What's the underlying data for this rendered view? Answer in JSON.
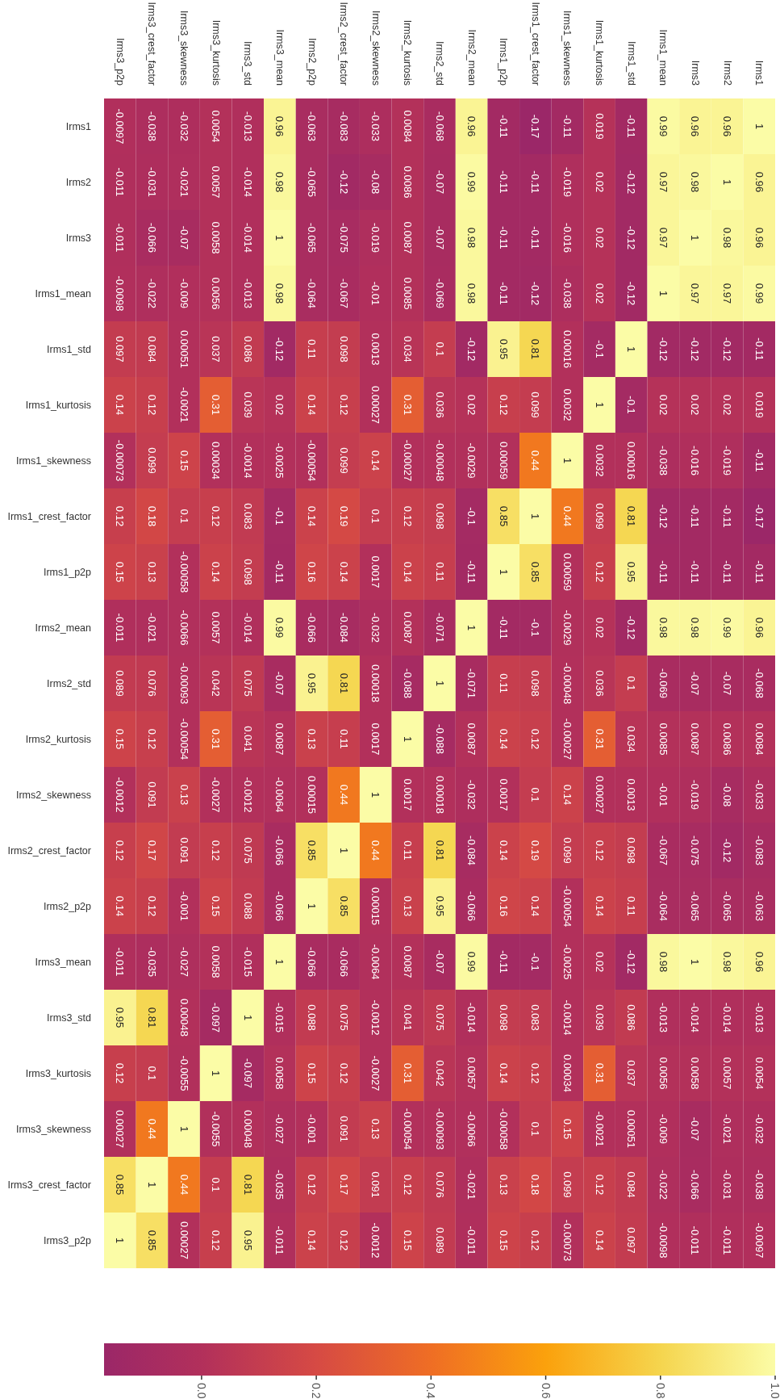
{
  "chart_data": {
    "type": "heatmap",
    "categories": [
      "Irms3_p2p",
      "Irms3_crest_factor",
      "Irms3_skewness",
      "Irms3_kurtosis",
      "Irms3_std",
      "Irms3_mean",
      "Irms2_p2p",
      "Irms2_crest_factor",
      "Irms2_skewness",
      "Irms2_kurtosis",
      "Irms2_std",
      "Irms2_mean",
      "Irms1_p2p",
      "Irms1_crest_factor",
      "Irms1_skewness",
      "Irms1_kurtosis",
      "Irms1_std",
      "Irms1_mean",
      "Irms3",
      "Irms2",
      "Irms1"
    ],
    "y_categories": [
      "Irms1",
      "Irms2",
      "Irms3",
      "Irms1_mean",
      "Irms1_std",
      "Irms1_kurtosis",
      "Irms1_skewness",
      "Irms1_crest_factor",
      "Irms1_p2p",
      "Irms2_mean",
      "Irms2_std",
      "Irms2_kurtosis",
      "Irms2_skewness",
      "Irms2_crest_factor",
      "Irms2_p2p",
      "Irms3_mean",
      "Irms3_std",
      "Irms3_kurtosis",
      "Irms3_skewness",
      "Irms3_crest_factor",
      "Irms3_p2p"
    ],
    "cells": [
      [
        -0.0097,
        -0.038,
        -0.032,
        0.0054,
        -0.013,
        0.96,
        -0.063,
        -0.083,
        -0.033,
        0.0084,
        -0.068,
        0.96,
        -0.11,
        -0.17,
        -0.11,
        0.019,
        -0.11,
        0.99,
        0.96,
        0.96,
        1
      ],
      [
        -0.011,
        -0.031,
        -0.021,
        0.0057,
        -0.014,
        0.98,
        -0.065,
        -0.12,
        -0.08,
        0.0086,
        -0.07,
        0.99,
        -0.11,
        -0.11,
        -0.019,
        0.02,
        -0.12,
        0.97,
        0.98,
        1,
        0.96
      ],
      [
        -0.011,
        -0.066,
        -0.07,
        0.0058,
        -0.014,
        1,
        -0.065,
        -0.075,
        -0.019,
        0.0087,
        -0.07,
        0.98,
        -0.11,
        -0.11,
        -0.016,
        0.02,
        -0.12,
        0.97,
        1,
        0.98,
        0.96
      ],
      [
        -0.0098,
        -0.022,
        -0.009,
        0.0056,
        -0.013,
        0.98,
        -0.064,
        -0.067,
        -0.01,
        0.0085,
        -0.069,
        0.98,
        -0.11,
        -0.12,
        -0.038,
        0.02,
        -0.12,
        1,
        0.97,
        0.97,
        0.99
      ],
      [
        0.097,
        0.084,
        0.00051,
        0.037,
        0.086,
        -0.12,
        0.11,
        0.098,
        0.0013,
        0.034,
        0.1,
        -0.12,
        0.95,
        0.81,
        0.00016,
        -0.1,
        1,
        -0.12,
        -0.12,
        -0.12,
        -0.11
      ],
      [
        0.14,
        0.12,
        -0.0021,
        0.31,
        0.039,
        0.02,
        0.14,
        0.12,
        0.00027,
        0.31,
        0.036,
        0.02,
        0.12,
        0.099,
        0.0032,
        1,
        -0.1,
        0.02,
        0.02,
        0.02,
        0.019
      ],
      [
        -0.00073,
        0.099,
        0.15,
        0.00034,
        -0.0014,
        -0.0025,
        -0.00054,
        0.099,
        0.14,
        -0.00027,
        -0.00048,
        -0.0029,
        0.00059,
        0.44,
        1,
        0.0032,
        0.00016,
        -0.038,
        -0.016,
        -0.019,
        -0.11
      ],
      [
        0.12,
        0.18,
        0.1,
        0.12,
        0.083,
        -0.1,
        0.14,
        0.19,
        0.1,
        0.12,
        0.098,
        -0.1,
        0.85,
        1,
        0.44,
        0.099,
        0.81,
        -0.12,
        -0.11,
        -0.11,
        -0.17
      ],
      [
        0.15,
        0.13,
        -0.00058,
        0.14,
        0.098,
        -0.11,
        0.16,
        0.14,
        0.0017,
        0.14,
        0.11,
        -0.11,
        1,
        0.85,
        0.00059,
        0.12,
        0.95,
        -0.11,
        -0.11,
        -0.11,
        -0.11
      ],
      [
        -0.011,
        -0.021,
        -0.0066,
        0.0057,
        -0.014,
        0.99,
        -0.066,
        -0.084,
        -0.032,
        0.0087,
        -0.071,
        1,
        -0.11,
        -0.1,
        -0.0029,
        0.02,
        -0.12,
        0.98,
        0.98,
        0.99,
        0.96
      ],
      [
        0.089,
        0.076,
        -0.00093,
        0.042,
        0.075,
        -0.07,
        0.95,
        0.81,
        0.00018,
        -0.088,
        1,
        -0.071,
        0.11,
        0.098,
        -0.00048,
        0.036,
        0.1,
        -0.069,
        -0.07,
        -0.07,
        -0.068
      ],
      [
        0.15,
        0.12,
        -0.00054,
        0.31,
        0.041,
        0.0087,
        0.13,
        0.11,
        0.0017,
        1,
        -0.088,
        0.0087,
        0.14,
        0.12,
        -0.00027,
        0.31,
        0.034,
        0.0085,
        0.0087,
        0.0086,
        0.0084
      ],
      [
        -0.0012,
        0.091,
        0.13,
        -0.0027,
        -0.0012,
        -0.0064,
        0.00015,
        0.44,
        1,
        0.0017,
        0.00018,
        -0.032,
        0.0017,
        0.1,
        0.14,
        0.00027,
        0.0013,
        -0.01,
        -0.019,
        -0.08,
        -0.033
      ],
      [
        0.12,
        0.17,
        0.091,
        0.12,
        0.075,
        -0.066,
        0.85,
        1,
        0.44,
        0.11,
        0.81,
        -0.084,
        0.14,
        0.19,
        0.099,
        0.12,
        0.098,
        -0.067,
        -0.075,
        -0.12,
        -0.083
      ],
      [
        0.14,
        0.12,
        -0.001,
        0.15,
        0.088,
        -0.066,
        1,
        0.85,
        0.00015,
        0.13,
        0.95,
        -0.066,
        0.16,
        0.14,
        -0.00054,
        0.14,
        0.11,
        -0.064,
        -0.065,
        -0.065,
        -0.063
      ],
      [
        -0.011,
        -0.035,
        -0.027,
        0.0058,
        -0.015,
        1,
        -0.066,
        -0.066,
        -0.0064,
        0.0087,
        -0.07,
        0.99,
        -0.11,
        -0.1,
        -0.0025,
        0.02,
        -0.12,
        0.98,
        1,
        0.98,
        0.96
      ],
      [
        0.95,
        0.81,
        0.00048,
        -0.097,
        1,
        -0.015,
        0.088,
        0.075,
        -0.0012,
        0.041,
        0.075,
        -0.014,
        0.098,
        0.083,
        -0.0014,
        0.039,
        0.086,
        -0.013,
        -0.014,
        -0.014,
        -0.013
      ],
      [
        0.12,
        0.1,
        -0.0055,
        1,
        -0.097,
        0.0058,
        0.15,
        0.12,
        -0.0027,
        0.31,
        0.042,
        0.0057,
        0.14,
        0.12,
        0.00034,
        0.31,
        0.037,
        0.0056,
        0.0058,
        0.0057,
        0.0054
      ],
      [
        0.00027,
        0.44,
        1,
        -0.0055,
        0.00048,
        -0.027,
        -0.001,
        0.091,
        0.13,
        -0.00054,
        -0.00093,
        -0.0066,
        -0.00058,
        0.1,
        0.15,
        -0.0021,
        0.00051,
        -0.009,
        -0.07,
        -0.021,
        -0.032
      ],
      [
        0.85,
        1,
        0.44,
        0.1,
        0.81,
        -0.035,
        0.12,
        0.17,
        0.091,
        0.12,
        0.076,
        -0.021,
        0.13,
        0.18,
        0.099,
        0.12,
        0.084,
        -0.022,
        -0.066,
        -0.031,
        -0.038
      ],
      [
        1,
        0.85,
        0.00027,
        0.12,
        0.95,
        -0.011,
        0.14,
        0.12,
        -0.0012,
        0.15,
        0.089,
        -0.011,
        0.15,
        0.12,
        -0.00073,
        0.14,
        0.097,
        -0.0098,
        -0.011,
        -0.011,
        -0.0097
      ]
    ],
    "data_labels": true,
    "clim": [
      -0.17,
      1
    ],
    "cticks": [
      {
        "value": 0,
        "label": "0.0"
      },
      0.2,
      0.4,
      0.6,
      0.8,
      {
        "value": 1,
        "label": "1.0"
      }
    ]
  }
}
